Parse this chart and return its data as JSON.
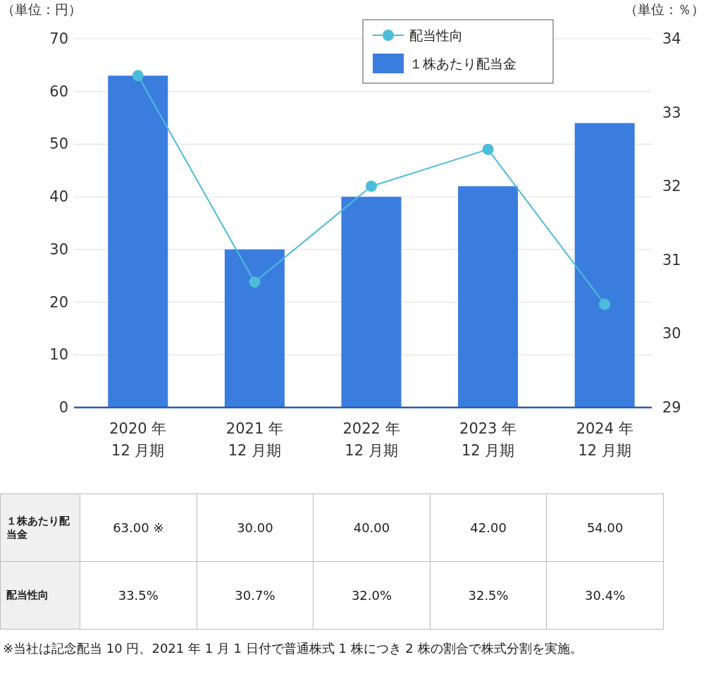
{
  "chart_data": {
    "type": "bar",
    "categories": [
      "2020 年\n12 月期",
      "2021 年\n12 月期",
      "2022 年\n12 月期",
      "2023 年\n12 月期",
      "2024 年\n12 月期"
    ],
    "series": [
      {
        "name": "１株あたり配当金",
        "type": "bar",
        "color": "#3a7ddf",
        "values": [
          63,
          30,
          40,
          42,
          54
        ],
        "value_labels": [
          "63.00 ※",
          "30.00",
          "40.00",
          "42.00",
          "54.00"
        ]
      },
      {
        "name": "配当性向",
        "type": "line",
        "axis": "y2",
        "color": "#4bbcd9",
        "values": [
          33.5,
          30.7,
          32.0,
          32.5,
          30.4
        ],
        "value_labels": [
          "33.5%",
          "30.7%",
          "32.0%",
          "32.5%",
          "30.4%"
        ]
      }
    ],
    "ylabel": "（単位：円）",
    "y2label": "（単位：％）",
    "ylim": [
      0,
      70
    ],
    "yticks": [
      0,
      10,
      20,
      30,
      40,
      50,
      60,
      70
    ],
    "y2lim": [
      29,
      34
    ],
    "y2ticks": [
      29,
      30,
      31,
      32,
      33,
      34
    ],
    "grid": "y",
    "legend": "top right",
    "marker": "circle",
    "annotations": [
      "※当社は記念配当 10 円、2021 年 1 月 1 日付で普通株式 1 株につき 2 株の割合で株式分割を実施。"
    ]
  }
}
